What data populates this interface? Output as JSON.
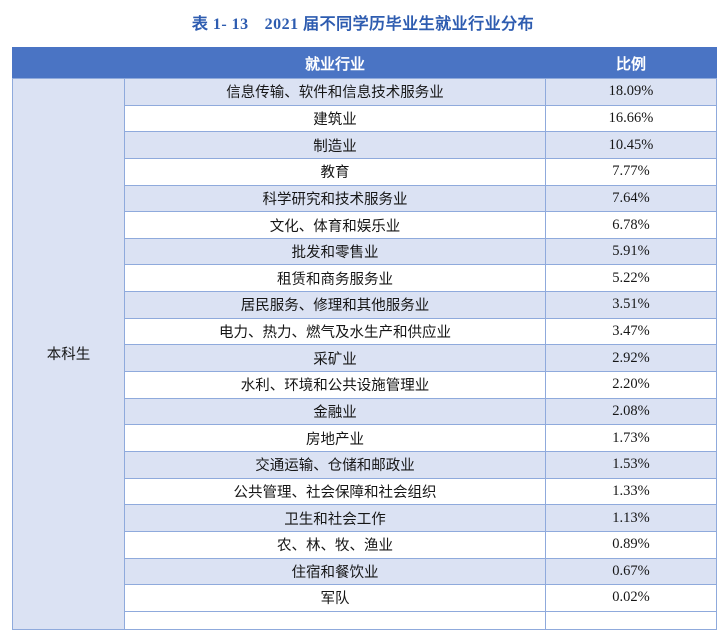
{
  "title": {
    "number": "表 1- 13",
    "text": "2021 届不同学历毕业生就业行业分布"
  },
  "table": {
    "group_label": "本科生",
    "columns": {
      "industry": "就业行业",
      "ratio": "比例"
    },
    "rows": [
      {
        "industry": "信息传输、软件和信息技术服务业",
        "ratio": "18.09%"
      },
      {
        "industry": "建筑业",
        "ratio": "16.66%"
      },
      {
        "industry": "制造业",
        "ratio": "10.45%"
      },
      {
        "industry": "教育",
        "ratio": "7.77%"
      },
      {
        "industry": "科学研究和技术服务业",
        "ratio": "7.64%"
      },
      {
        "industry": "文化、体育和娱乐业",
        "ratio": "6.78%"
      },
      {
        "industry": "批发和零售业",
        "ratio": "5.91%"
      },
      {
        "industry": "租赁和商务服务业",
        "ratio": "5.22%"
      },
      {
        "industry": "居民服务、修理和其他服务业",
        "ratio": "3.51%"
      },
      {
        "industry": "电力、热力、燃气及水生产和供应业",
        "ratio": "3.47%"
      },
      {
        "industry": "采矿业",
        "ratio": "2.92%"
      },
      {
        "industry": "水利、环境和公共设施管理业",
        "ratio": "2.20%"
      },
      {
        "industry": "金融业",
        "ratio": "2.08%"
      },
      {
        "industry": "房地产业",
        "ratio": "1.73%"
      },
      {
        "industry": "交通运输、仓储和邮政业",
        "ratio": "1.53%"
      },
      {
        "industry": "公共管理、社会保障和社会组织",
        "ratio": "1.33%"
      },
      {
        "industry": "卫生和社会工作",
        "ratio": "1.13%"
      },
      {
        "industry": "农、林、牧、渔业",
        "ratio": "0.89%"
      },
      {
        "industry": "住宿和餐饮业",
        "ratio": "0.67%"
      },
      {
        "industry": "军队",
        "ratio": "0.02%"
      }
    ]
  },
  "colors": {
    "header_bg": "#4a74c4",
    "header_text": "#ffffff",
    "row_alt_bg": "#dbe2f3",
    "border": "#8faadc",
    "title_text": "#2e5cb0"
  }
}
